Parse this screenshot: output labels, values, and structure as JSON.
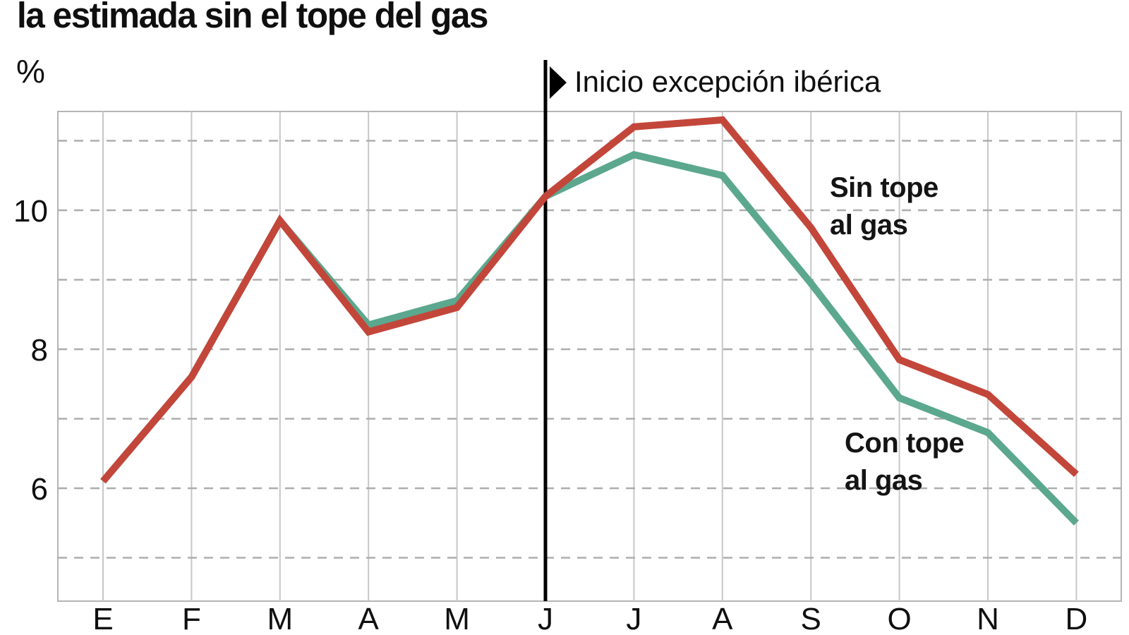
{
  "title": "la estimada sin el tope del gas",
  "axis": {
    "unit_label": "%",
    "y_tick_labels": [
      "10",
      "8",
      "6"
    ],
    "y_tick_values": [
      10,
      8,
      6
    ]
  },
  "annotation": {
    "marker_icon": "right-triangle-icon",
    "label": "Inicio excepción ibérica"
  },
  "series_annotations": {
    "sin_tope": {
      "line1": "Sin tope",
      "line2": "al gas"
    },
    "con_tope": {
      "line1": "Con tope",
      "line2": "al gas"
    }
  },
  "colors": {
    "sin_tope": "#c3463a",
    "con_tope": "#5ba88e",
    "event_line": "#000000",
    "grid_solid": "#c7c7c7",
    "grid_dashed": "#adadad",
    "frame": "#b5b5b5",
    "text": "#0f0f0f"
  },
  "chart_data": {
    "type": "line",
    "categories": [
      "E",
      "F",
      "M",
      "A",
      "M",
      "J",
      "J",
      "A",
      "S",
      "O",
      "N",
      "D"
    ],
    "series": [
      {
        "name": "Sin tope al gas",
        "color_key": "sin_tope",
        "values": [
          6.1,
          7.6,
          9.85,
          8.25,
          8.6,
          10.2,
          11.2,
          11.3,
          9.75,
          7.85,
          7.35,
          6.2
        ]
      },
      {
        "name": "Con tope al gas",
        "color_key": "con_tope",
        "values": [
          6.1,
          7.6,
          9.85,
          8.35,
          8.7,
          10.2,
          10.8,
          10.5,
          8.95,
          7.3,
          6.8,
          5.5
        ]
      }
    ],
    "title": "la estimada sin el tope del gas",
    "xlabel": "",
    "ylabel": "%",
    "ylim": [
      4.38,
      11.42
    ],
    "y_gridlines": [
      5,
      6,
      7,
      8,
      9,
      10,
      11
    ],
    "event_marker": {
      "label": "Inicio excepción ibérica",
      "category_index": 5
    },
    "grid": true,
    "legend_position": "inline"
  }
}
